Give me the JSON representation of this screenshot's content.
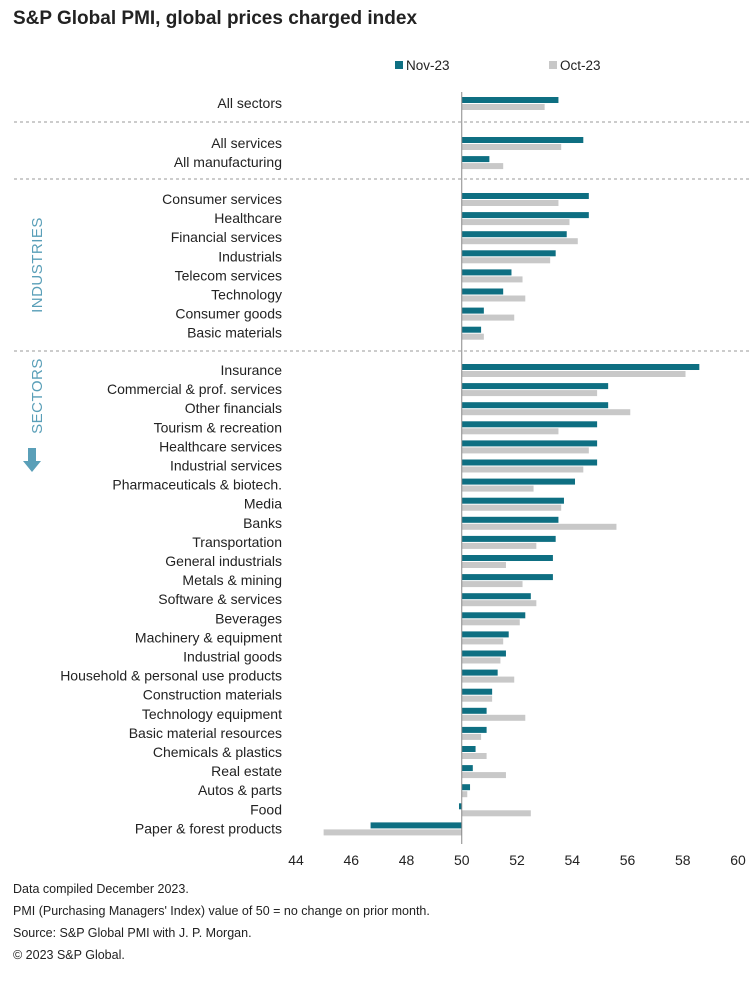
{
  "title": "S&P Global PMI, global prices charged index",
  "notes": [
    "Data compiled December 2023.",
    "PMI (Purchasing Managers' Index) value of 50 = no change on prior month.",
    "Source: S&P Global PMI with J. P. Morgan.",
    "© 2023 S&P Global."
  ],
  "side_labels": {
    "industries": "INDUSTRIES",
    "sectors": "SECTORS"
  },
  "colors": {
    "nov": "#0e6f82",
    "oct": "#c8c8c8",
    "side_label": "#5a9fb8",
    "divider": "#999999",
    "axis": "#888888"
  },
  "chart_data": {
    "type": "bar",
    "orientation": "horizontal",
    "xlim": [
      44,
      60
    ],
    "xticks": [
      44,
      46,
      48,
      50,
      52,
      54,
      56,
      58,
      60
    ],
    "baseline": 50,
    "grid": false,
    "legend_placement": "top",
    "series": [
      {
        "name": "Nov-23",
        "values": [
          53.5,
          54.4,
          51.0,
          54.6,
          54.6,
          53.8,
          53.4,
          51.8,
          51.5,
          50.8,
          50.7,
          58.6,
          55.3,
          55.3,
          54.9,
          54.9,
          54.9,
          54.1,
          53.7,
          53.5,
          53.4,
          53.3,
          53.3,
          52.5,
          52.3,
          51.7,
          51.6,
          51.3,
          51.1,
          50.9,
          50.9,
          50.5,
          50.4,
          50.3,
          49.9,
          46.7
        ]
      },
      {
        "name": "Oct-23",
        "values": [
          53.0,
          53.6,
          51.5,
          53.5,
          53.9,
          54.2,
          53.2,
          52.2,
          52.3,
          51.9,
          50.8,
          58.1,
          54.9,
          56.1,
          53.5,
          54.6,
          54.4,
          52.6,
          53.6,
          55.6,
          52.7,
          51.6,
          52.2,
          52.7,
          52.1,
          51.5,
          51.4,
          51.9,
          51.1,
          52.3,
          50.7,
          50.9,
          51.6,
          50.2,
          52.5,
          45.0
        ]
      }
    ],
    "groups": [
      {
        "categories": [
          "All sectors"
        ]
      },
      {
        "categories": [
          "All services",
          "All manufacturing"
        ]
      },
      {
        "categories": [
          "Consumer services",
          "Healthcare",
          "Financial services",
          "Industrials",
          "Telecom services",
          "Technology",
          "Consumer goods",
          "Basic materials"
        ]
      },
      {
        "categories": [
          "Insurance",
          "Commercial & prof. services",
          "Other financials",
          "Tourism & recreation",
          "Healthcare services",
          "Industrial services",
          "Pharmaceuticals & biotech.",
          "Media",
          "Banks",
          "Transportation",
          "General industrials",
          "Metals & mining",
          "Software & services",
          "Beverages",
          "Machinery & equipment",
          "Industrial goods",
          "Household & personal use products",
          "Construction materials",
          "Technology equipment",
          "Basic material resources",
          "Chemicals & plastics",
          "Real estate",
          "Autos & parts",
          "Food",
          "Paper & forest products"
        ]
      }
    ]
  }
}
